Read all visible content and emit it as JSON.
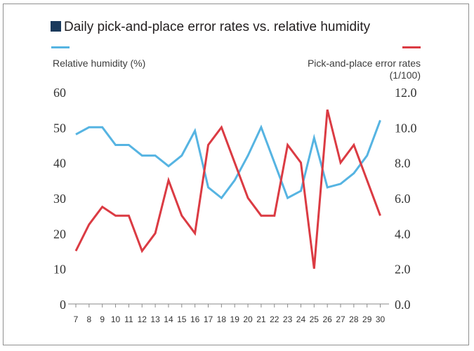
{
  "chart_data": {
    "type": "line",
    "title": "Daily pick-and-place error rates vs. relative humidity",
    "x": [
      "7",
      "8",
      "9",
      "10",
      "11",
      "12",
      "13",
      "14",
      "15",
      "16",
      "17",
      "18",
      "19",
      "20",
      "21",
      "22",
      "23",
      "24",
      "25",
      "26",
      "27",
      "28",
      "29",
      "30"
    ],
    "y_left_label": "Relative humidity (%)",
    "y_right_label_line1": "Pick-and-place error rates",
    "y_right_label_line2": "(1/100)",
    "y_left_range": [
      0,
      60
    ],
    "y_left_ticks": [
      "0",
      "10",
      "20",
      "30",
      "40",
      "50",
      "60"
    ],
    "y_right_range": [
      0,
      12
    ],
    "y_right_ticks": [
      "0.0",
      "2.0",
      "4.0",
      "6.0",
      "8.0",
      "10.0",
      "12.0"
    ],
    "grid": false,
    "series": [
      {
        "axis": "left",
        "color": "#56b4e2",
        "values": [
          48,
          50,
          50,
          45,
          45,
          42,
          42,
          39,
          42,
          49,
          33,
          30,
          35,
          42,
          50,
          40,
          30,
          32,
          47,
          33,
          34,
          37,
          42,
          52
        ]
      },
      {
        "axis": "right",
        "color": "#db3b43",
        "values": [
          3.0,
          4.5,
          5.5,
          5.0,
          5.0,
          3.0,
          4.0,
          7.0,
          5.0,
          4.0,
          9.0,
          10.0,
          8.0,
          6.0,
          5.0,
          5.0,
          9.0,
          8.0,
          2.0,
          11.0,
          8.0,
          9.0,
          7.0,
          5.0
        ]
      }
    ]
  }
}
